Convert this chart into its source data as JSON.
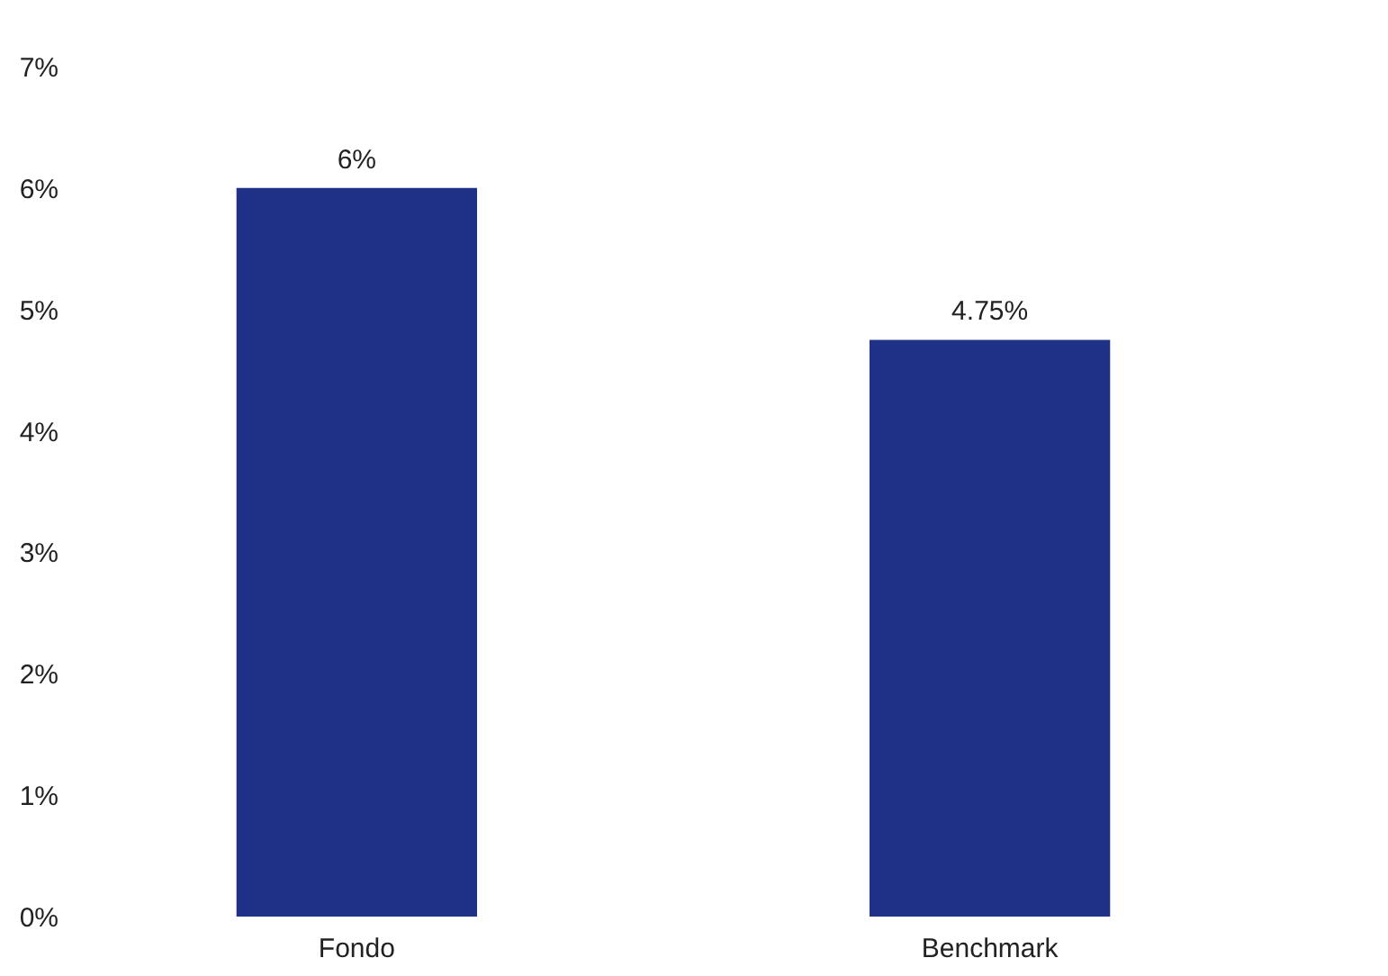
{
  "chart_data": {
    "type": "bar",
    "categories": [
      "Fondo",
      "Benchmark"
    ],
    "values": [
      6,
      4.75
    ],
    "value_labels": [
      "6%",
      "4.75%"
    ],
    "color": "#1e3187",
    "ylim": [
      0,
      7
    ],
    "yticks": [
      {
        "value": 0,
        "label": "0%"
      },
      {
        "value": 1,
        "label": "1%"
      },
      {
        "value": 2,
        "label": "2%"
      },
      {
        "value": 3,
        "label": "3%"
      },
      {
        "value": 4,
        "label": "4%"
      },
      {
        "value": 5,
        "label": "5%"
      },
      {
        "value": 6,
        "label": "6%"
      },
      {
        "value": 7,
        "label": "7%"
      }
    ],
    "grid": false
  }
}
